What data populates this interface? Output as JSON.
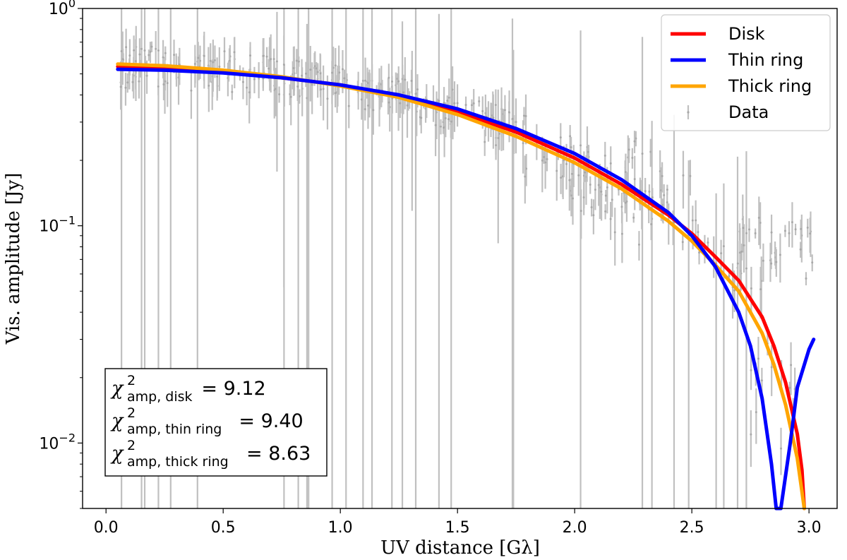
{
  "chart_data": {
    "type": "line",
    "xlabel": "UV distance [Gλ]",
    "ylabel": "Vis. amplitude [Jy]",
    "xlim": [
      -0.1,
      3.12
    ],
    "ylim": [
      0.005,
      1.0
    ],
    "yscale": "log",
    "grid": false,
    "legend_position": "top-right",
    "x_ticks": [
      {
        "value": 0.0,
        "label": "0.0"
      },
      {
        "value": 0.5,
        "label": "0.5"
      },
      {
        "value": 1.0,
        "label": "1.0"
      },
      {
        "value": 1.5,
        "label": "1.5"
      },
      {
        "value": 2.0,
        "label": "2.0"
      },
      {
        "value": 2.5,
        "label": "2.5"
      },
      {
        "value": 3.0,
        "label": "3.0"
      }
    ],
    "y_ticks": [
      {
        "value": 1.0,
        "base": "10",
        "exp": "0"
      },
      {
        "value": 0.1,
        "base": "10",
        "exp": "−1"
      },
      {
        "value": 0.01,
        "base": "10",
        "exp": "−2"
      }
    ],
    "series": [
      {
        "name": "Disk",
        "color": "#ff0000",
        "x": [
          0.05,
          0.25,
          0.5,
          0.75,
          1.0,
          1.25,
          1.5,
          1.75,
          2.0,
          2.2,
          2.4,
          2.5,
          2.6,
          2.7,
          2.8,
          2.85,
          2.9,
          2.95,
          2.97,
          2.98
        ],
        "y": [
          0.54,
          0.535,
          0.51,
          0.48,
          0.445,
          0.395,
          0.335,
          0.27,
          0.205,
          0.155,
          0.112,
          0.092,
          0.072,
          0.056,
          0.038,
          0.028,
          0.019,
          0.011,
          0.0075,
          0.005
        ]
      },
      {
        "name": "Thin ring",
        "color": "#0000ff",
        "x": [
          0.05,
          0.25,
          0.5,
          0.75,
          1.0,
          1.25,
          1.5,
          1.75,
          2.0,
          2.2,
          2.4,
          2.5,
          2.6,
          2.7,
          2.75,
          2.8,
          2.84,
          2.86,
          2.88,
          2.92,
          2.95,
          3.0,
          3.02
        ],
        "y": [
          0.525,
          0.52,
          0.505,
          0.48,
          0.445,
          0.4,
          0.345,
          0.28,
          0.215,
          0.163,
          0.115,
          0.09,
          0.065,
          0.04,
          0.028,
          0.016,
          0.008,
          0.005,
          0.005,
          0.01,
          0.018,
          0.027,
          0.03
        ]
      },
      {
        "name": "Thick ring",
        "color": "#ffa500",
        "x": [
          0.05,
          0.25,
          0.5,
          0.75,
          1.0,
          1.25,
          1.5,
          1.75,
          2.0,
          2.2,
          2.4,
          2.5,
          2.6,
          2.7,
          2.8,
          2.85,
          2.9,
          2.95,
          2.98
        ],
        "y": [
          0.555,
          0.545,
          0.52,
          0.485,
          0.44,
          0.39,
          0.325,
          0.258,
          0.195,
          0.148,
          0.105,
          0.085,
          0.066,
          0.05,
          0.032,
          0.023,
          0.015,
          0.0085,
          0.005
        ]
      }
    ],
    "data_series": {
      "name": "Data",
      "color": "#c0c0c0"
    },
    "annotation": [
      {
        "sub": "amp, disk",
        "value": "9.12"
      },
      {
        "sub": "amp, thin ring",
        "value": "9.40"
      },
      {
        "sub": "amp, thick ring",
        "value": "8.63"
      }
    ]
  }
}
